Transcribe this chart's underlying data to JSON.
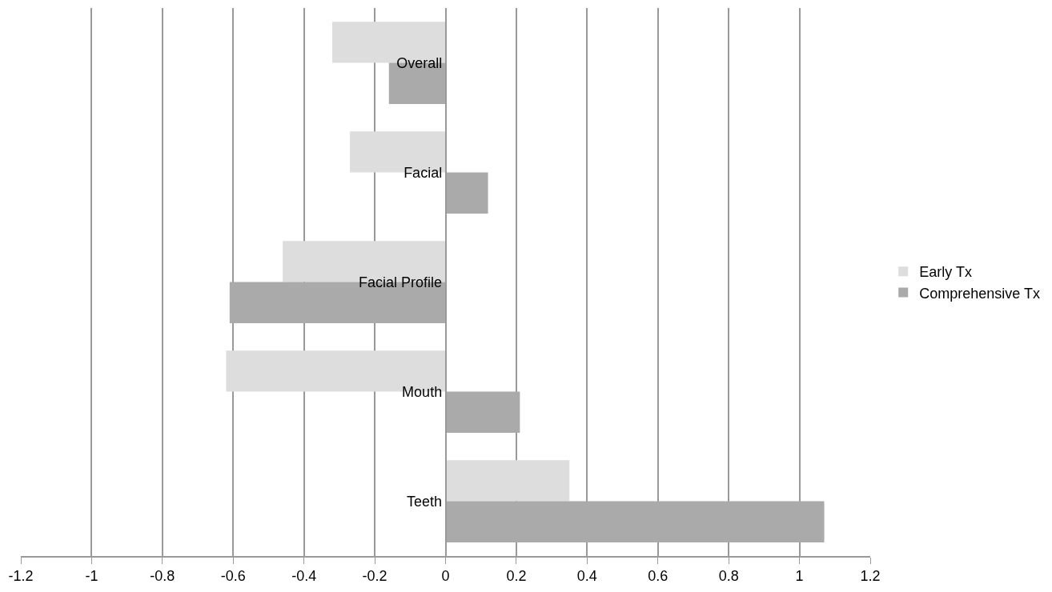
{
  "chart_data": {
    "type": "bar",
    "orientation": "horizontal",
    "categories": [
      "Overall",
      "Facial",
      "Facial Profile",
      "Mouth",
      "Teeth"
    ],
    "series": [
      {
        "name": "Early Tx",
        "color": "#dddddd",
        "values": [
          -0.32,
          -0.27,
          -0.46,
          -0.62,
          0.35
        ]
      },
      {
        "name": "Comprehensive Tx",
        "color": "#aaaaaa",
        "values": [
          -0.16,
          0.12,
          -0.61,
          0.21,
          1.07
        ]
      }
    ],
    "xlim": [
      -1.2,
      1.2
    ],
    "xticks": [
      -1.2,
      -1,
      -0.8,
      -0.6,
      -0.4,
      -0.2,
      0,
      0.2,
      0.4,
      0.6,
      0.8,
      1,
      1.2
    ],
    "grid": "x",
    "legend": "right"
  }
}
